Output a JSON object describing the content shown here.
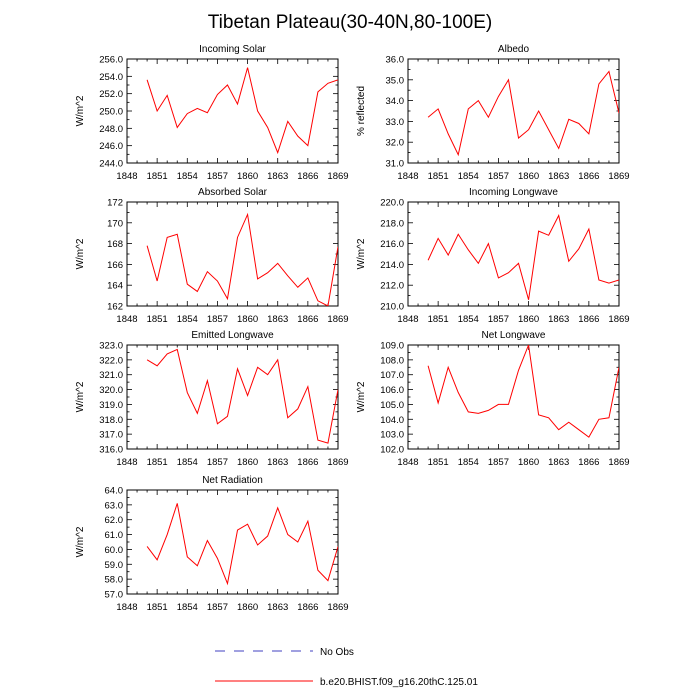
{
  "page_title": "Tibetan Plateau(30-40N,80-100E)",
  "legend": {
    "obs_label": "No Obs",
    "obs_color": "#4040c0",
    "model_label": "b.e20.BHIST.f09_g16.20thC.125.01",
    "model_color": "#ff0000"
  },
  "chart_data": [
    {
      "type": "line",
      "title": "Incoming Solar",
      "ylabel": "W/m^2",
      "xlim": [
        1848,
        1869
      ],
      "xticks": [
        "1848",
        "1851",
        "1854",
        "1857",
        "1860",
        "1863",
        "1866",
        "1869"
      ],
      "ylim": [
        244,
        256
      ],
      "yticks": [
        "244.0",
        "246.0",
        "248.0",
        "250.0",
        "252.0",
        "254.0",
        "256.0"
      ],
      "x": [
        1850,
        1851,
        1852,
        1853,
        1854,
        1855,
        1856,
        1857,
        1858,
        1859,
        1860,
        1861,
        1862,
        1863,
        1864,
        1865,
        1866,
        1867,
        1868,
        1869
      ],
      "series": [
        {
          "name": "b.e20.BHIST.f09_g16.20thC.125.01",
          "values": [
            253.6,
            250.0,
            251.8,
            248.1,
            249.7,
            250.3,
            249.8,
            251.9,
            253.0,
            250.8,
            255.0,
            250.0,
            248.1,
            245.2,
            248.8,
            247.1,
            246.0,
            252.2,
            253.2,
            253.6
          ]
        }
      ]
    },
    {
      "type": "line",
      "title": "Albedo",
      "ylabel": "% reflected",
      "xlim": [
        1848,
        1869
      ],
      "xticks": [
        "1848",
        "1851",
        "1854",
        "1857",
        "1860",
        "1863",
        "1866",
        "1869"
      ],
      "ylim": [
        31,
        36
      ],
      "yticks": [
        "31.0",
        "32.0",
        "33.0",
        "34.0",
        "35.0",
        "36.0"
      ],
      "x": [
        1850,
        1851,
        1852,
        1853,
        1854,
        1855,
        1856,
        1857,
        1858,
        1859,
        1860,
        1861,
        1862,
        1863,
        1864,
        1865,
        1866,
        1867,
        1868,
        1869
      ],
      "series": [
        {
          "name": "b.e20.BHIST.f09_g16.20thC.125.01",
          "values": [
            33.2,
            33.6,
            32.4,
            31.4,
            33.6,
            34.0,
            33.2,
            34.2,
            35.0,
            32.2,
            32.6,
            33.5,
            32.6,
            31.7,
            33.1,
            32.9,
            32.4,
            34.8,
            35.4,
            33.4
          ]
        }
      ]
    },
    {
      "type": "line",
      "title": "Absorbed Solar",
      "ylabel": "W/m^2",
      "xlim": [
        1848,
        1869
      ],
      "xticks": [
        "1848",
        "1851",
        "1854",
        "1857",
        "1860",
        "1863",
        "1866",
        "1869"
      ],
      "ylim": [
        162,
        172
      ],
      "yticks": [
        "162",
        "164",
        "166",
        "168",
        "170",
        "172"
      ],
      "x": [
        1850,
        1851,
        1852,
        1853,
        1854,
        1855,
        1856,
        1857,
        1858,
        1859,
        1860,
        1861,
        1862,
        1863,
        1864,
        1865,
        1866,
        1867,
        1868,
        1869
      ],
      "series": [
        {
          "name": "b.e20.BHIST.f09_g16.20thC.125.01",
          "values": [
            167.8,
            164.4,
            168.6,
            168.9,
            164.1,
            163.4,
            165.3,
            164.4,
            162.7,
            168.6,
            170.8,
            164.6,
            165.2,
            166.1,
            164.9,
            163.8,
            164.7,
            162.5,
            162.0,
            167.7
          ]
        }
      ]
    },
    {
      "type": "line",
      "title": "Incoming Longwave",
      "ylabel": "W/m^2",
      "xlim": [
        1848,
        1869
      ],
      "xticks": [
        "1848",
        "1851",
        "1854",
        "1857",
        "1860",
        "1863",
        "1866",
        "1869"
      ],
      "ylim": [
        210,
        220
      ],
      "yticks": [
        "210.0",
        "212.0",
        "214.0",
        "216.0",
        "218.0",
        "220.0"
      ],
      "x": [
        1850,
        1851,
        1852,
        1853,
        1854,
        1855,
        1856,
        1857,
        1858,
        1859,
        1860,
        1861,
        1862,
        1863,
        1864,
        1865,
        1866,
        1867,
        1868,
        1869
      ],
      "series": [
        {
          "name": "b.e20.BHIST.f09_g16.20thC.125.01",
          "values": [
            214.4,
            216.5,
            214.9,
            216.9,
            215.4,
            214.1,
            216.0,
            212.7,
            213.2,
            214.1,
            210.6,
            217.2,
            216.8,
            218.7,
            214.3,
            215.5,
            217.4,
            212.5,
            212.2,
            212.5
          ]
        }
      ]
    },
    {
      "type": "line",
      "title": "Emitted Longwave",
      "ylabel": "W/m^2",
      "xlim": [
        1848,
        1869
      ],
      "xticks": [
        "1848",
        "1851",
        "1854",
        "1857",
        "1860",
        "1863",
        "1866",
        "1869"
      ],
      "ylim": [
        316,
        323
      ],
      "yticks": [
        "316.0",
        "317.0",
        "318.0",
        "319.0",
        "320.0",
        "321.0",
        "322.0",
        "323.0"
      ],
      "x": [
        1850,
        1851,
        1852,
        1853,
        1854,
        1855,
        1856,
        1857,
        1858,
        1859,
        1860,
        1861,
        1862,
        1863,
        1864,
        1865,
        1866,
        1867,
        1868,
        1869
      ],
      "series": [
        {
          "name": "b.e20.BHIST.f09_g16.20thC.125.01",
          "values": [
            322.0,
            321.6,
            322.4,
            322.7,
            319.8,
            318.4,
            320.6,
            317.7,
            318.2,
            321.4,
            319.6,
            321.5,
            321.0,
            322.0,
            318.1,
            318.7,
            320.2,
            316.6,
            316.4,
            320.0
          ]
        }
      ]
    },
    {
      "type": "line",
      "title": "Net Longwave",
      "ylabel": "W/m^2",
      "xlim": [
        1848,
        1869
      ],
      "xticks": [
        "1848",
        "1851",
        "1854",
        "1857",
        "1860",
        "1863",
        "1866",
        "1869"
      ],
      "ylim": [
        102,
        109
      ],
      "yticks": [
        "102.0",
        "103.0",
        "104.0",
        "105.0",
        "106.0",
        "107.0",
        "108.0",
        "109.0"
      ],
      "x": [
        1850,
        1851,
        1852,
        1853,
        1854,
        1855,
        1856,
        1857,
        1858,
        1859,
        1860,
        1861,
        1862,
        1863,
        1864,
        1865,
        1866,
        1867,
        1868,
        1869
      ],
      "series": [
        {
          "name": "b.e20.BHIST.f09_g16.20thC.125.01",
          "values": [
            107.6,
            105.1,
            107.5,
            105.8,
            104.5,
            104.4,
            104.6,
            105.0,
            105.0,
            107.3,
            109.0,
            104.3,
            104.1,
            103.3,
            103.8,
            103.3,
            102.8,
            104.0,
            104.1,
            107.5
          ]
        }
      ]
    },
    {
      "type": "line",
      "title": "Net Radiation",
      "ylabel": "W/m^2",
      "xlim": [
        1848,
        1869
      ],
      "xticks": [
        "1848",
        "1851",
        "1854",
        "1857",
        "1860",
        "1863",
        "1866",
        "1869"
      ],
      "ylim": [
        57,
        64
      ],
      "yticks": [
        "57.0",
        "58.0",
        "59.0",
        "60.0",
        "61.0",
        "62.0",
        "63.0",
        "64.0"
      ],
      "x": [
        1850,
        1851,
        1852,
        1853,
        1854,
        1855,
        1856,
        1857,
        1858,
        1859,
        1860,
        1861,
        1862,
        1863,
        1864,
        1865,
        1866,
        1867,
        1868,
        1869
      ],
      "series": [
        {
          "name": "b.e20.BHIST.f09_g16.20thC.125.01",
          "values": [
            60.2,
            59.3,
            61.0,
            63.1,
            59.5,
            58.9,
            60.6,
            59.4,
            57.7,
            61.3,
            61.7,
            60.3,
            60.9,
            62.8,
            61.0,
            60.5,
            61.9,
            58.6,
            57.9,
            60.2
          ]
        }
      ]
    }
  ]
}
